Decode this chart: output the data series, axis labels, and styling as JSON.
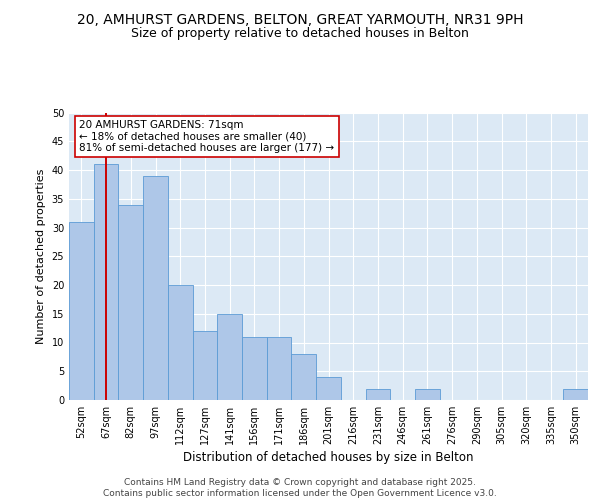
{
  "title_line1": "20, AMHURST GARDENS, BELTON, GREAT YARMOUTH, NR31 9PH",
  "title_line2": "Size of property relative to detached houses in Belton",
  "xlabel": "Distribution of detached houses by size in Belton",
  "ylabel": "Number of detached properties",
  "categories": [
    "52sqm",
    "67sqm",
    "82sqm",
    "97sqm",
    "112sqm",
    "127sqm",
    "141sqm",
    "156sqm",
    "171sqm",
    "186sqm",
    "201sqm",
    "216sqm",
    "231sqm",
    "246sqm",
    "261sqm",
    "276sqm",
    "290sqm",
    "305sqm",
    "320sqm",
    "335sqm",
    "350sqm"
  ],
  "values": [
    31,
    41,
    34,
    39,
    20,
    12,
    15,
    11,
    11,
    8,
    4,
    0,
    2,
    0,
    2,
    0,
    0,
    0,
    0,
    0,
    2
  ],
  "bar_color": "#aec7e8",
  "bar_edge_color": "#5b9bd5",
  "vline_x_index": 1,
  "vline_color": "#cc0000",
  "annotation_text": "20 AMHURST GARDENS: 71sqm\n← 18% of detached houses are smaller (40)\n81% of semi-detached houses are larger (177) →",
  "annotation_box_color": "#ffffff",
  "annotation_box_edge": "#cc0000",
  "ylim": [
    0,
    50
  ],
  "yticks": [
    0,
    5,
    10,
    15,
    20,
    25,
    30,
    35,
    40,
    45,
    50
  ],
  "bg_color": "#dce9f5",
  "grid_color": "#ffffff",
  "footer": "Contains HM Land Registry data © Crown copyright and database right 2025.\nContains public sector information licensed under the Open Government Licence v3.0.",
  "title_fontsize": 10,
  "subtitle_fontsize": 9,
  "tick_fontsize": 7,
  "ylabel_fontsize": 8,
  "xlabel_fontsize": 8.5,
  "annotation_fontsize": 7.5,
  "footer_fontsize": 6.5
}
